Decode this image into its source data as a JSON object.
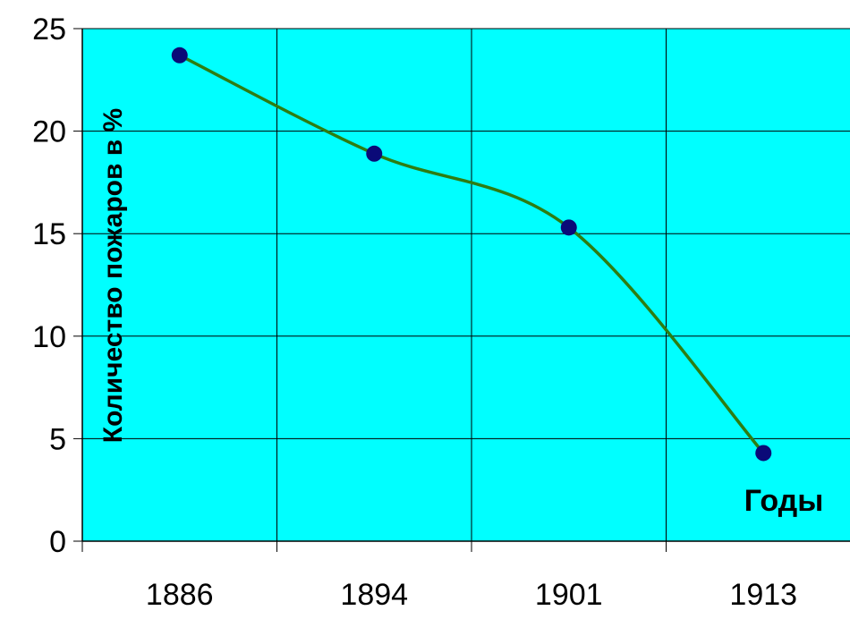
{
  "chart_data": {
    "type": "line",
    "categories": [
      "1886",
      "1894",
      "1901",
      "1913"
    ],
    "series": [
      {
        "values": [
          23.7,
          18.9,
          15.3,
          4.3
        ]
      }
    ],
    "ylabel": "Количество пожаров в %",
    "annotation": "Годы",
    "ylim": [
      0,
      25
    ],
    "yticks": [
      "0",
      "5",
      "10",
      "15",
      "20",
      "25"
    ],
    "grid": true,
    "smooth": true
  },
  "colors": {
    "plot_background": "#00ffff",
    "line": "#2e7d12",
    "marker": "#0a0a78",
    "grid": "#000000"
  }
}
